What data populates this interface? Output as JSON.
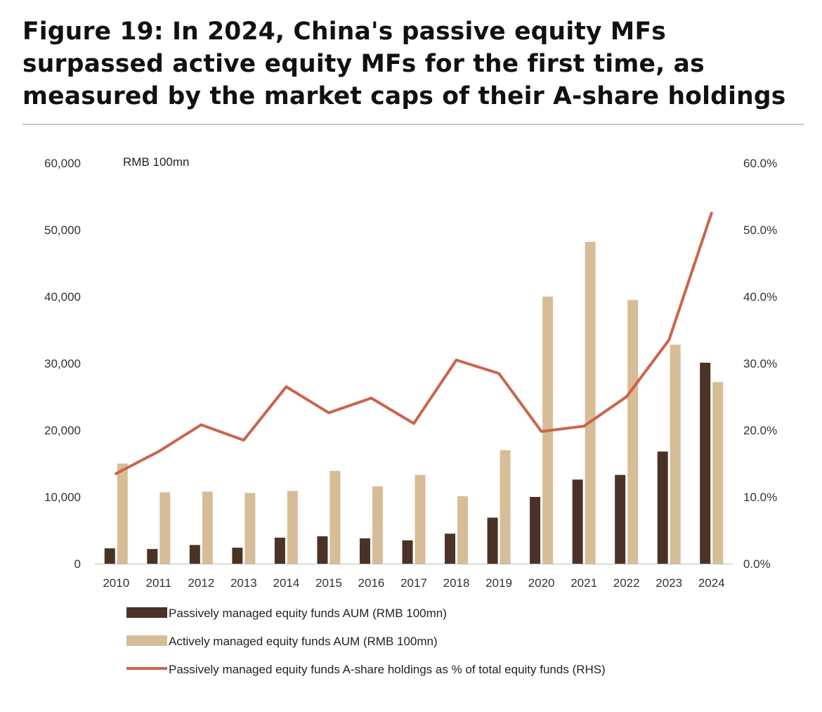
{
  "title": "Figure 19: In 2024, China's passive equity MFs surpassed active equity MFs for the first time, as measured by the market caps of their A-share holdings",
  "colors": {
    "passive_bar": "#4a3326",
    "active_bar": "#d7bd97",
    "line": "#c9654c",
    "axis": "#bbbbbb",
    "title_rule": "#c8c8c8"
  },
  "chart_data": {
    "type": "bar",
    "unit_label": "RMB 100mn",
    "categories": [
      "2010",
      "2011",
      "2012",
      "2013",
      "2014",
      "2015",
      "2016",
      "2017",
      "2018",
      "2019",
      "2020",
      "2021",
      "2022",
      "2023",
      "2024"
    ],
    "series": [
      {
        "name": "Passively managed equity funds AUM (RMB 100mn)",
        "kind": "bar",
        "axis": "left",
        "values": [
          2300,
          2200,
          2800,
          2400,
          3900,
          4100,
          3800,
          3500,
          4500,
          6900,
          10000,
          12600,
          13300,
          16800,
          30100
        ]
      },
      {
        "name": "Actively managed equity funds AUM (RMB 100mn)",
        "kind": "bar",
        "axis": "left",
        "values": [
          15000,
          10700,
          10800,
          10600,
          10900,
          13900,
          11600,
          13300,
          10100,
          17000,
          40000,
          48200,
          39500,
          32800,
          27200
        ]
      },
      {
        "name": "Passively managed equity funds A-share holdings as % of total equity funds (RHS)",
        "kind": "line",
        "axis": "right",
        "values": [
          13.5,
          16.8,
          20.8,
          18.5,
          26.5,
          22.6,
          24.8,
          21.0,
          30.5,
          28.5,
          19.8,
          20.6,
          25.0,
          33.5,
          52.5
        ]
      }
    ],
    "left_axis": {
      "min": 0,
      "max": 60000,
      "ticks": [
        "0",
        "10,000",
        "20,000",
        "30,000",
        "40,000",
        "50,000",
        "60,000"
      ]
    },
    "right_axis": {
      "min": 0,
      "max": 60,
      "ticks": [
        "0.0%",
        "10.0%",
        "20.0%",
        "30.0%",
        "40.0%",
        "50.0%",
        "60.0%"
      ]
    },
    "legend": [
      "Passively managed equity funds AUM (RMB 100mn)",
      "Actively managed equity funds AUM (RMB 100mn)",
      "Passively managed equity funds A-share holdings as % of total equity funds (RHS)"
    ],
    "legend_position": "bottom",
    "grid": false
  }
}
